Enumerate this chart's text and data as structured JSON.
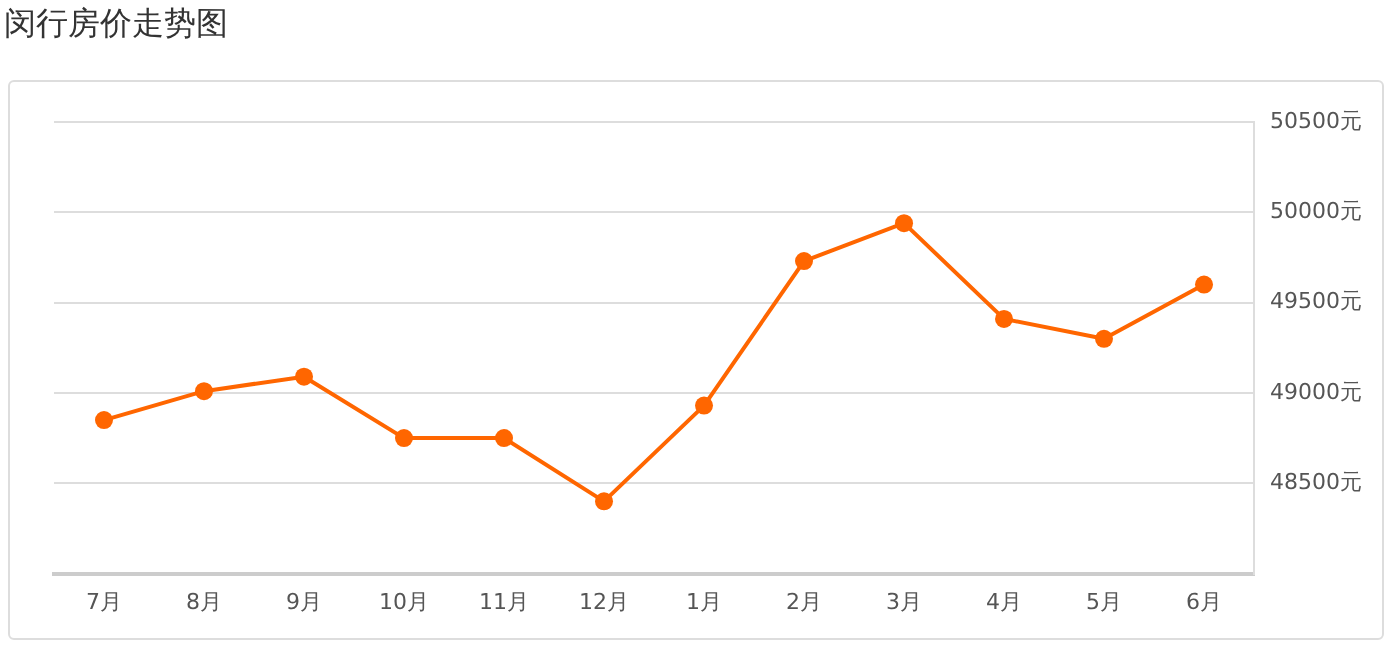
{
  "chart_data": {
    "type": "line",
    "title": "闵行房价走势图",
    "categories": [
      "7月",
      "8月",
      "9月",
      "10月",
      "11月",
      "12月",
      "1月",
      "2月",
      "3月",
      "4月",
      "5月",
      "6月"
    ],
    "series": [
      {
        "color": "#ff6600",
        "values": [
          48850,
          49010,
          49090,
          48750,
          48750,
          48400,
          48930,
          49730,
          49940,
          49410,
          49300,
          49600
        ]
      }
    ],
    "ylim": [
      48000,
      50500
    ],
    "yticks": [
      {
        "value": 48000,
        "label": null
      },
      {
        "value": 48500,
        "label": "48500元"
      },
      {
        "value": 49000,
        "label": "49000元"
      },
      {
        "value": 49500,
        "label": "49500元"
      },
      {
        "value": 50000,
        "label": "50000元"
      },
      {
        "value": 50500,
        "label": "50500元"
      }
    ],
    "grid": "y",
    "legend": false,
    "marker": "circle",
    "line_style": "solid"
  }
}
